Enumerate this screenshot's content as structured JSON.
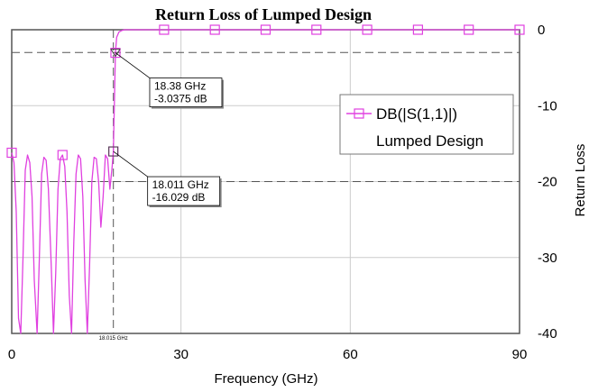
{
  "chart_data": {
    "type": "line",
    "title": "Return Loss of Lumped Design",
    "xlabel": "Frequency (GHz)",
    "ylabel": "Return Loss",
    "xlim": [
      0,
      90
    ],
    "ylim": [
      -40,
      0
    ],
    "xticks": [
      "0",
      "30",
      "60",
      "90"
    ],
    "yticks": [
      "0",
      "-10",
      "-20",
      "-30",
      "-40"
    ],
    "y_axis_side": "right",
    "grid": true,
    "colors": {
      "series": "#e040e0",
      "grid": "#cccccc",
      "ref_line": "#555555"
    },
    "series": [
      {
        "name": "DB(|S(1,1)|)",
        "subtitle": "Lumped Design",
        "x": [
          0,
          0.4,
          0.8,
          1.2,
          1.6,
          2.0,
          2.4,
          2.8,
          3.2,
          3.6,
          4.0,
          4.5,
          4.9,
          5.3,
          5.7,
          6.1,
          6.5,
          7.0,
          7.4,
          7.8,
          8.2,
          8.6,
          9.0,
          9.4,
          9.8,
          10.2,
          10.6,
          11.0,
          11.4,
          11.8,
          12.2,
          12.6,
          13.0,
          13.4,
          13.8,
          14.2,
          14.6,
          15.0,
          15.4,
          15.8,
          16.2,
          16.6,
          17.0,
          17.4,
          17.8,
          18.011,
          18.2,
          18.38,
          18.6,
          19.0,
          19.5,
          20,
          25,
          30,
          40,
          50,
          60,
          70,
          80,
          90
        ],
        "y": [
          -16.2,
          -17.5,
          -24.0,
          -38.0,
          -40.0,
          -30.0,
          -18.5,
          -16.5,
          -17.5,
          -22.0,
          -33.0,
          -40.0,
          -30.0,
          -19.0,
          -16.8,
          -17.2,
          -21.0,
          -31.0,
          -40.0,
          -32.0,
          -21.0,
          -17.0,
          -16.5,
          -18.0,
          -24.0,
          -35.0,
          -40.0,
          -28.0,
          -19.0,
          -16.5,
          -17.0,
          -22.0,
          -33.0,
          -40.0,
          -31.0,
          -20.0,
          -16.8,
          -17.0,
          -20.0,
          -26.0,
          -22.0,
          -16.5,
          -17.0,
          -21.0,
          -18.0,
          -16.029,
          -9.5,
          -3.0375,
          -1.0,
          -0.3,
          -0.1,
          0,
          0,
          0,
          0,
          0,
          0,
          0,
          0,
          0
        ]
      }
    ],
    "point_markers_x": [
      0,
      9,
      18.011,
      18.38,
      27,
      36,
      45,
      54,
      63,
      72,
      81,
      90
    ],
    "reference_lines_y": [
      -3,
      -20
    ],
    "reference_line_x": 18.015,
    "markers": [
      {
        "x": 18.38,
        "y": -3.0375,
        "shape": "triangle",
        "label_lines": [
          "18.38 GHz",
          "-3.0375 dB"
        ]
      },
      {
        "x": 18.011,
        "y": -16.029,
        "shape": "square",
        "label_lines": [
          "18.011 GHz",
          "-16.029 dB"
        ]
      }
    ],
    "x_marker_label": "18.015 GHz",
    "legend_position": "center-right"
  }
}
